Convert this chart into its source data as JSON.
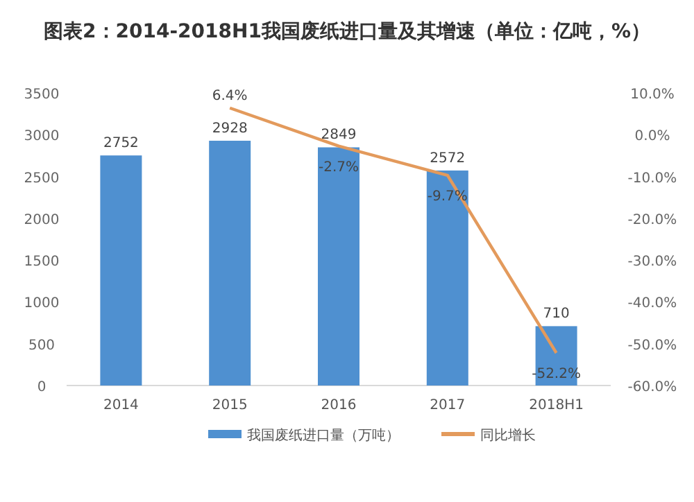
{
  "chart_data": {
    "type": "bar",
    "title": "图表2：2014-2018H1我国废纸进口量及其增速（单位：亿吨，%）",
    "categories": [
      "2014",
      "2015",
      "2016",
      "2017",
      "2018H1"
    ],
    "series": [
      {
        "name": "我国废纸进口量（万吨）",
        "color": "#4f90d0",
        "values": [
          2752,
          2928,
          2849,
          2572,
          710
        ],
        "value_labels": [
          "2752",
          "2928",
          "2849",
          "2572",
          "710"
        ]
      },
      {
        "name": "同比增长",
        "type": "line",
        "axis": "y2",
        "color": "#e39a5c",
        "values": [
          null,
          6.4,
          -2.7,
          -9.7,
          -52.2
        ],
        "value_labels": [
          null,
          "6.4%",
          "-2.7%",
          "-9.7%",
          "-52.2%"
        ]
      }
    ],
    "ylim": [
      0,
      3500
    ],
    "yticks": [
      0,
      500,
      1000,
      1500,
      2000,
      2500,
      3000,
      3500
    ],
    "y2lim": [
      -60,
      10
    ],
    "y2ticks": [
      {
        "value": 10,
        "label": "10.0%"
      },
      {
        "value": 0,
        "label": "0.0%"
      },
      {
        "value": -10,
        "label": "-10.0%"
      },
      {
        "value": -20,
        "label": "-20.0%"
      },
      {
        "value": -30,
        "label": "-30.0%"
      },
      {
        "value": -40,
        "label": "-40.0%"
      },
      {
        "value": -50,
        "label": "-50.0%"
      },
      {
        "value": -60,
        "label": "-60.0%"
      }
    ],
    "legend": "bottom"
  }
}
